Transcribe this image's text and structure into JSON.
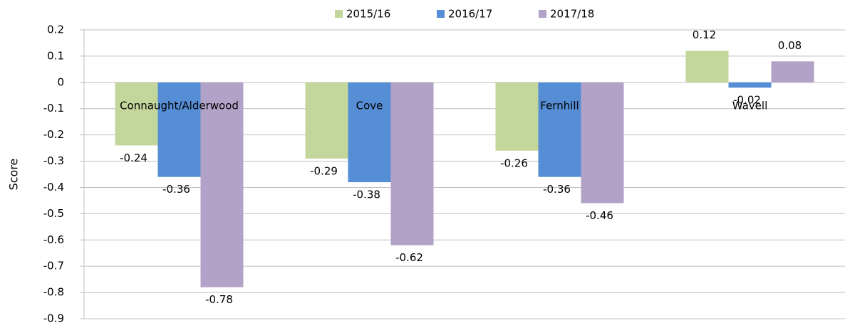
{
  "chart_data": {
    "type": "bar",
    "categories": [
      "Connaught/Alderwood",
      "Cove",
      "Fernhill",
      "Wavell"
    ],
    "series": [
      {
        "name": "2015/16",
        "color": "#c3d69b",
        "values": [
          -0.24,
          -0.29,
          -0.26,
          0.12
        ]
      },
      {
        "name": "2016/17",
        "color": "#558ed5",
        "values": [
          -0.36,
          -0.38,
          -0.36,
          -0.02
        ]
      },
      {
        "name": "2017/18",
        "color": "#b3a2c7",
        "values": [
          -0.78,
          -0.62,
          -0.46,
          0.08
        ]
      }
    ],
    "ylabel": "Score",
    "ylim": [
      -0.9,
      0.2
    ],
    "yticks": [
      0.2,
      0.1,
      0,
      -0.1,
      -0.2,
      -0.3,
      -0.4,
      -0.5,
      -0.6,
      -0.7,
      -0.8,
      -0.9
    ],
    "grid": true,
    "legend": "top"
  }
}
